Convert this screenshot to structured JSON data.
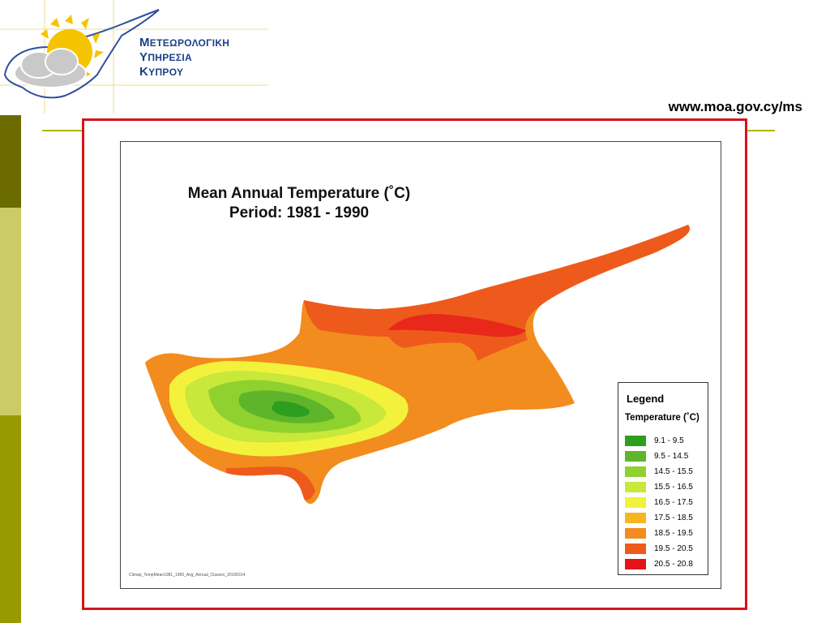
{
  "header": {
    "org_line1_cap": "Μ",
    "org_line1": "ΕΤΕΩΡΟΛΟΓΙΚΗ",
    "org_line2_cap": "Υ",
    "org_line2": "ΠΗΡΕΣΙΑ",
    "org_line3_cap": "Κ",
    "org_line3": "ΥΠΡΟΥ",
    "url": "www.moa.gov.cy/ms"
  },
  "map": {
    "title_line1": "Mean Annual Temperature (˚C)",
    "title_line2": "Period:   1981 - 1990",
    "footer": "Climap_TempMean1981_1990_Avg_Annual_Classes_20100314",
    "legend": {
      "title": "Legend",
      "subtitle": "Temperature (˚C)",
      "items": [
        {
          "label": "9.1 -  9.5",
          "color": "#2e9e1e"
        },
        {
          "label": "9.5 - 14.5",
          "color": "#5fb52a"
        },
        {
          "label": "14.5 - 15.5",
          "color": "#8fd12f"
        },
        {
          "label": "15.5 - 16.5",
          "color": "#c8e83a"
        },
        {
          "label": "16.5 - 17.5",
          "color": "#f2f23c"
        },
        {
          "label": "17.5 - 18.5",
          "color": "#f7b51f"
        },
        {
          "label": "18.5 - 19.5",
          "color": "#f28c1e"
        },
        {
          "label": "19.5 - 20.5",
          "color": "#ee5a1c"
        },
        {
          "label": "20.5 - 20.8",
          "color": "#e5131b"
        }
      ]
    }
  },
  "colors": {
    "frame": "#d4141c",
    "brand": "#1a3f8a",
    "rule": "#b3b300"
  }
}
